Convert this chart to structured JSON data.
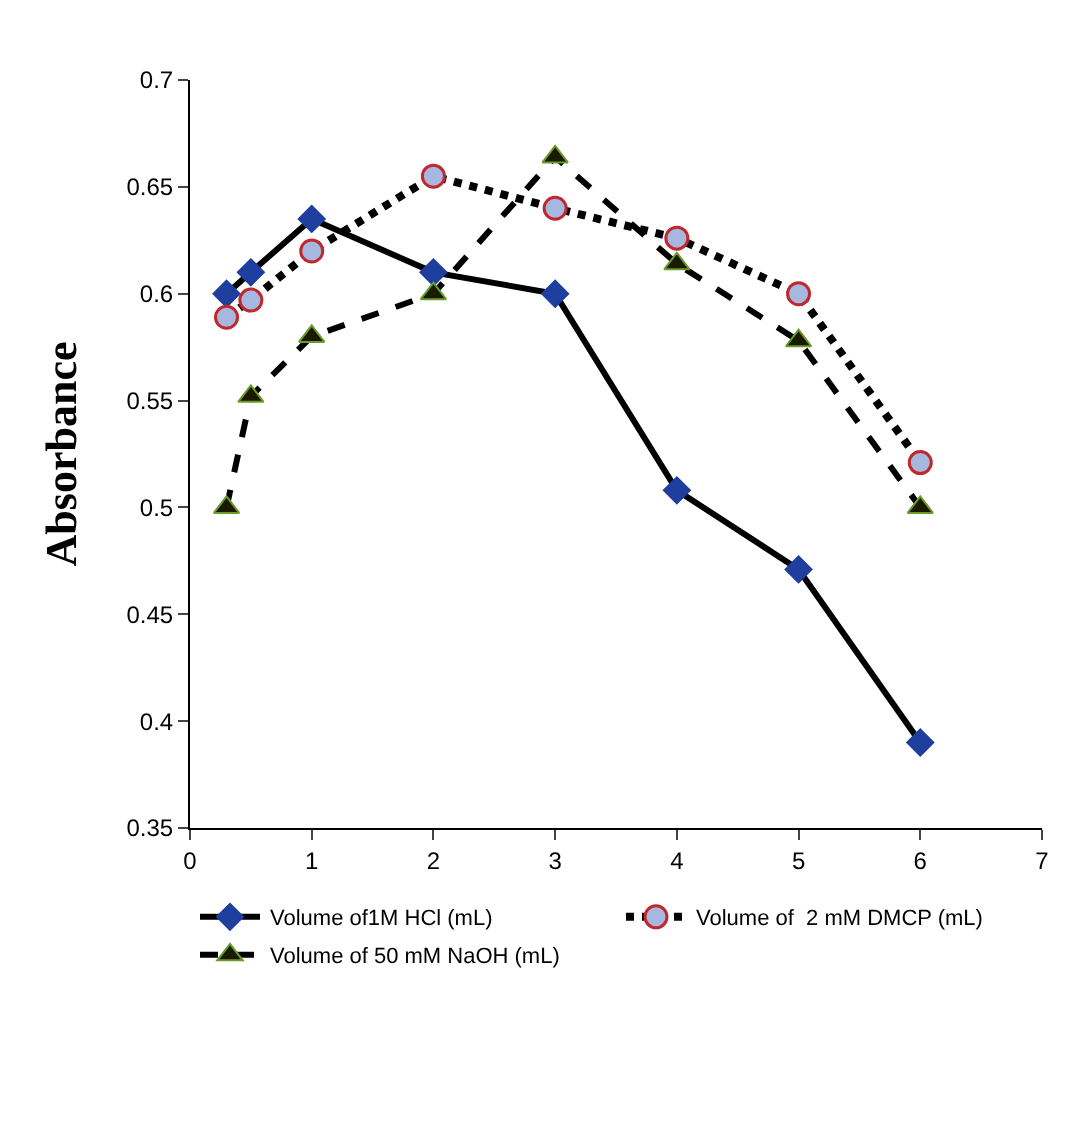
{
  "chart_data": {
    "type": "line",
    "ylabel": "Absorbance",
    "x": [
      0.3,
      0.5,
      1,
      2,
      3,
      4,
      5,
      6
    ],
    "series": [
      {
        "name": "Volume of1M HCl (mL)",
        "color": "#1f3f9f",
        "marker": "diamond",
        "line_style": "solid",
        "values": [
          0.6,
          0.61,
          0.635,
          0.61,
          0.6,
          0.508,
          0.471,
          0.39
        ]
      },
      {
        "name": "Volume of  2 mM DMCP (mL)",
        "color": "#a6b8e0",
        "marker": "circle",
        "line_style": "dotted",
        "values": [
          0.589,
          0.597,
          0.62,
          0.655,
          0.64,
          0.626,
          0.6,
          0.521
        ]
      },
      {
        "name": "Volume of 50 mM NaOH (mL)",
        "color": "#1a1a00",
        "marker": "triangle",
        "line_style": "dashed",
        "values": [
          0.5,
          0.552,
          0.58,
          0.6,
          0.664,
          0.614,
          0.578,
          0.5
        ]
      }
    ],
    "xlim": [
      0,
      7
    ],
    "xticks": [
      0,
      1,
      2,
      3,
      4,
      5,
      6,
      7
    ],
    "ylim": [
      0.35,
      0.7
    ],
    "yticks": [
      0.35,
      0.4,
      0.45,
      0.5,
      0.55,
      0.6,
      0.65,
      0.7
    ],
    "grid": false,
    "legend": "bottom"
  }
}
